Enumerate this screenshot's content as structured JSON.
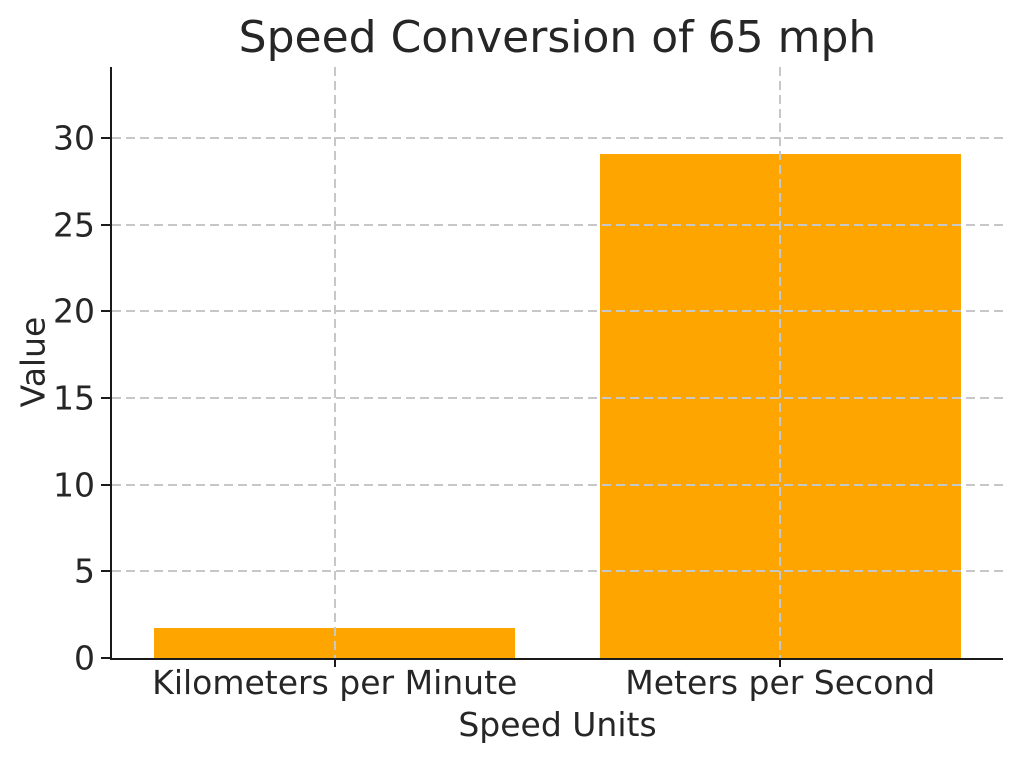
{
  "chart_data": {
    "type": "bar",
    "title": "Speed Conversion of 65 mph",
    "xlabel": "Speed Units",
    "ylabel": "Value",
    "categories": [
      "Kilometers per Minute",
      "Meters per Second"
    ],
    "values": [
      1.74,
      29.06
    ],
    "yticks": [
      0,
      5,
      10,
      15,
      20,
      25,
      30
    ],
    "ylim": [
      0,
      34.1
    ],
    "grid": true,
    "grid_style": "dashed",
    "grid_above_bars": true,
    "legend": null,
    "colors": {
      "bar": "#FFA500",
      "grid": "#c7c7c7",
      "axis": "#1a1a1a",
      "text": "#262626",
      "background": "#ffffff"
    }
  }
}
